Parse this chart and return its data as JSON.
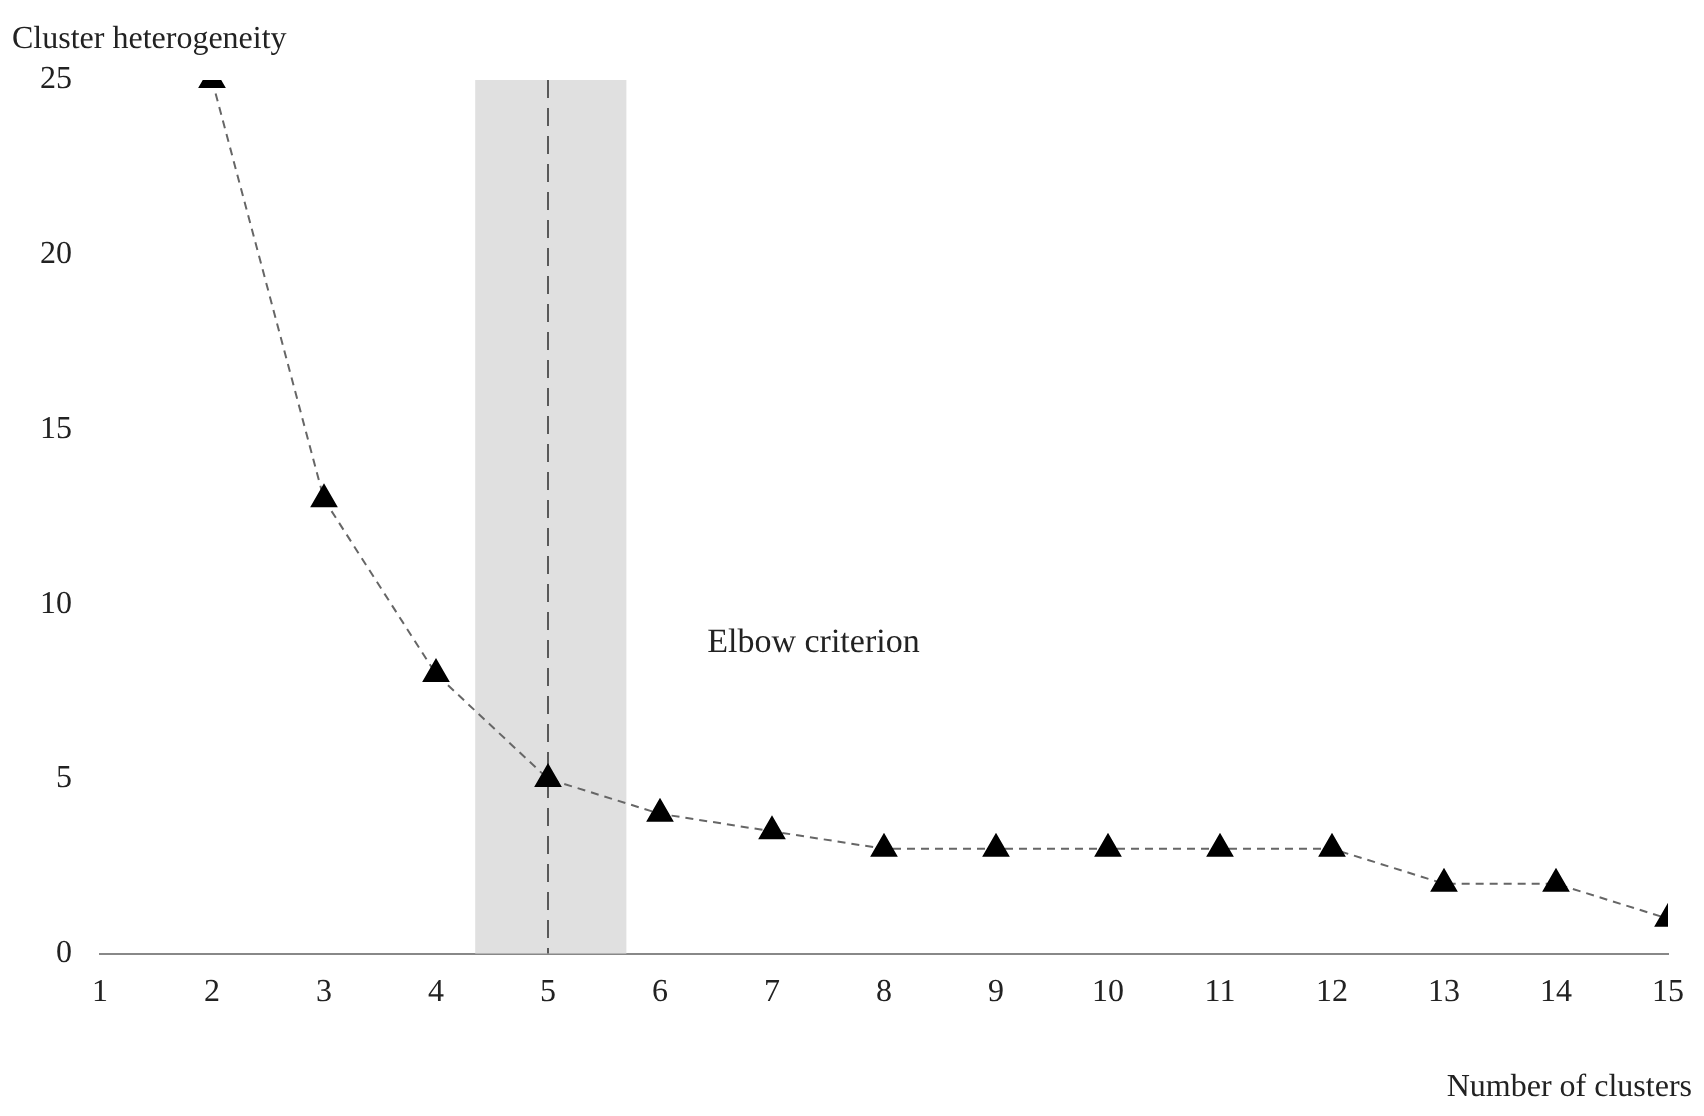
{
  "chart_data": {
    "type": "line",
    "xlabel": "Number of clusters",
    "ylabel": "Cluster heterogeneity",
    "x": [
      2,
      3,
      4,
      5,
      6,
      7,
      8,
      9,
      10,
      11,
      12,
      13,
      14,
      15
    ],
    "series": [
      {
        "color": "#000000",
        "values": [
          25,
          13,
          8,
          5,
          4,
          3.5,
          3,
          3,
          3,
          3,
          3,
          2,
          2,
          1
        ]
      }
    ],
    "xlim": [
      1,
      15
    ],
    "xticks": [
      1,
      2,
      3,
      4,
      5,
      6,
      7,
      8,
      9,
      10,
      11,
      12,
      13,
      14,
      15
    ],
    "ylim": [
      0,
      25
    ],
    "yticks": [
      0,
      5,
      10,
      15,
      20,
      25
    ],
    "grid": false,
    "legend": false,
    "marker": "triangle",
    "line_style": "dashed",
    "annotations": [
      "Elbow criterion"
    ],
    "ref_lines": [
      {
        "axis": "x",
        "value": 5,
        "line_style": "dashed",
        "color": "#595959"
      }
    ],
    "bands": [
      {
        "axis": "x",
        "from": 4.35,
        "to": 5.7,
        "color": "#e0e0e0"
      }
    ]
  }
}
